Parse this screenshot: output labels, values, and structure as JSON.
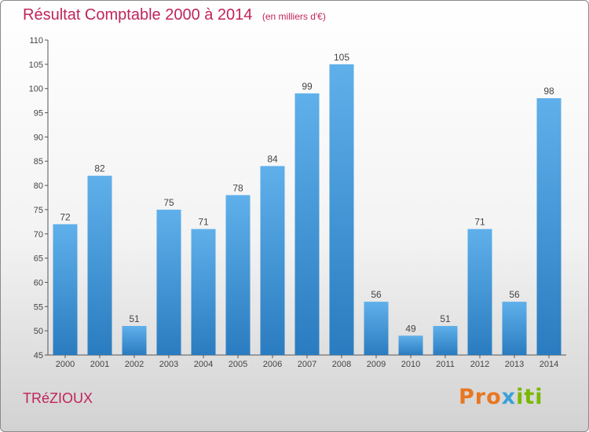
{
  "title": "Résultat Comptable 2000 à 2014",
  "subtitle": "(en milliers d'€)",
  "commune": "TRéZIOUX",
  "logo": {
    "part1": "Pro",
    "part2": "x",
    "part3": "iti"
  },
  "colors": {
    "accent": "#c0245c",
    "bar_top": "#5fb0ea",
    "bar_bottom": "#2a7cc0"
  },
  "chart_data": {
    "type": "bar",
    "categories": [
      "2000",
      "2001",
      "2002",
      "2003",
      "2004",
      "2005",
      "2006",
      "2007",
      "2008",
      "2009",
      "2010",
      "2011",
      "2012",
      "2013",
      "2014"
    ],
    "values": [
      72,
      82,
      51,
      75,
      71,
      78,
      84,
      99,
      105,
      56,
      49,
      51,
      71,
      56,
      98
    ],
    "title": "Résultat Comptable 2000 à 2014",
    "subtitle": "(en milliers d'€)",
    "xlabel": "",
    "ylabel": "",
    "ylim": [
      45,
      110
    ],
    "yticks": [
      45,
      50,
      55,
      60,
      65,
      70,
      75,
      80,
      85,
      90,
      95,
      100,
      105,
      110
    ],
    "grid": false,
    "legend": "none"
  }
}
